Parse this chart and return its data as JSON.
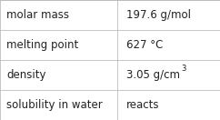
{
  "rows": [
    {
      "label": "molar mass",
      "value": "197.6 g/mol",
      "has_super": false,
      "base": "",
      "super": ""
    },
    {
      "label": "melting point",
      "value": "627 °C",
      "has_super": false,
      "base": "",
      "super": ""
    },
    {
      "label": "density",
      "value": "3.05 g/cm",
      "has_super": true,
      "base": "3.05 g/cm",
      "super": "3"
    },
    {
      "label": "solubility in water",
      "value": "reacts",
      "has_super": false,
      "base": "",
      "super": ""
    }
  ],
  "background_color": "#ffffff",
  "border_color": "#bbbbbb",
  "text_color": "#222222",
  "font_size": 8.5,
  "col_split": 0.535,
  "fig_width": 2.42,
  "fig_height": 1.32,
  "dpi": 100
}
